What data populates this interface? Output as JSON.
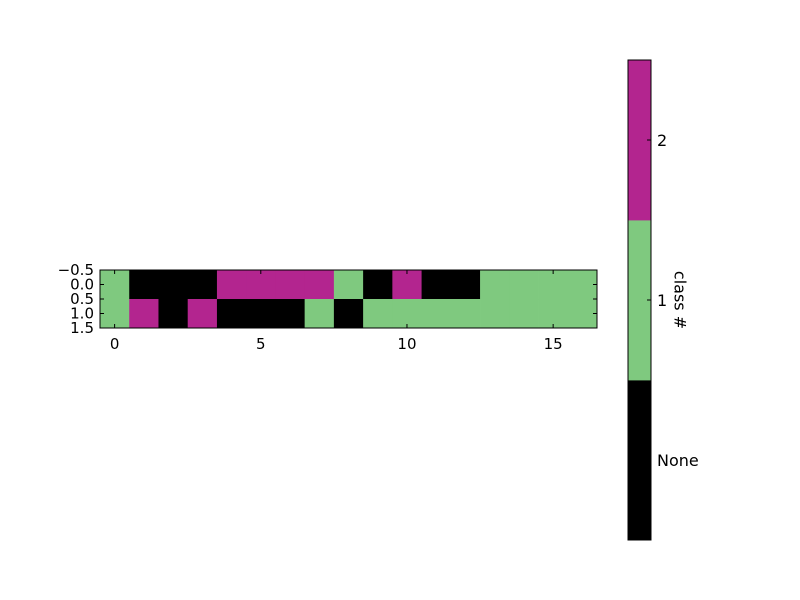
{
  "chart_data": {
    "type": "heatmap",
    "title": "",
    "xlabel": "",
    "ylabel": "",
    "grid": false,
    "n_cols": 17,
    "n_rows": 2,
    "xlim": [
      -0.5,
      16.5
    ],
    "ylim": [
      1.5,
      -0.5
    ],
    "x_ticks": [
      0,
      5,
      10,
      15
    ],
    "x_tick_labels": [
      "0",
      "5",
      "10",
      "15"
    ],
    "y_ticks": [
      -0.5,
      0.0,
      0.5,
      1.0,
      1.5
    ],
    "y_tick_labels": [
      "−0.5",
      "0.0",
      "0.5",
      "1.0",
      "1.5"
    ],
    "classes": [
      {
        "value": 0,
        "label": "None",
        "color": "#000000"
      },
      {
        "value": 1,
        "label": "1",
        "color": "#7fc97f"
      },
      {
        "value": 2,
        "label": "2",
        "color": "#b3258f"
      }
    ],
    "colorbar": {
      "label": "class #",
      "tick_labels": [
        "None",
        "1",
        "2"
      ],
      "placement": "right"
    },
    "matrix": [
      [
        1,
        0,
        0,
        0,
        2,
        2,
        2,
        2,
        1,
        0,
        2,
        0,
        0,
        1,
        1,
        1,
        1
      ],
      [
        1,
        2,
        0,
        2,
        0,
        0,
        0,
        1,
        0,
        1,
        1,
        1,
        1,
        1,
        1,
        1,
        1
      ]
    ]
  }
}
